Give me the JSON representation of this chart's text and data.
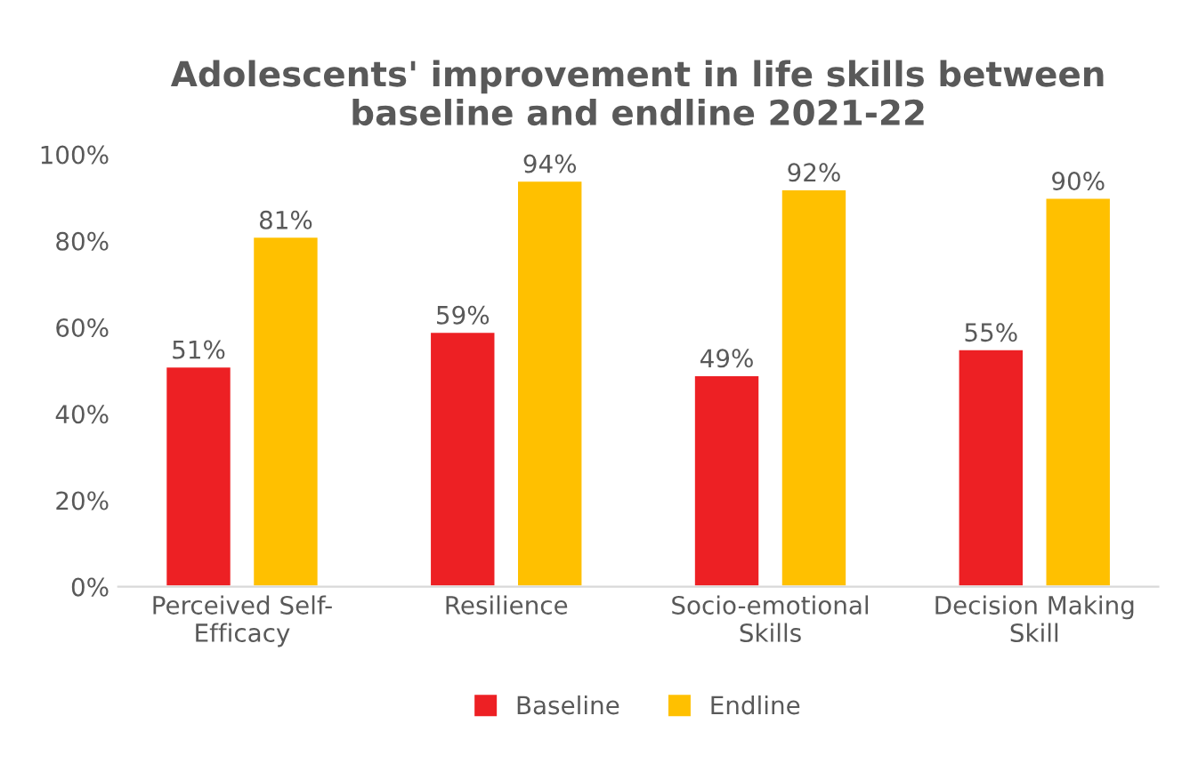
{
  "chart_data": {
    "type": "bar",
    "title": "Adolescents' improvement in life skills between baseline and endline 2021-22",
    "categories": [
      "Perceived Self-Efficacy",
      "Resilience",
      "Socio-emotional Skills",
      "Decision Making Skill"
    ],
    "series": [
      {
        "name": "Baseline",
        "color": "#ed2024",
        "values": [
          51,
          59,
          49,
          55
        ],
        "value_labels": [
          "51%",
          "59%",
          "49%",
          "55%"
        ]
      },
      {
        "name": "Endline",
        "color": "#ffc000",
        "values": [
          81,
          94,
          92,
          90
        ],
        "value_labels": [
          "81%",
          "94%",
          "92%",
          "90%"
        ]
      }
    ],
    "ylim": [
      0,
      100
    ],
    "yticks": [
      {
        "value": 0,
        "label": "0%"
      },
      {
        "value": 20,
        "label": "20%"
      },
      {
        "value": 40,
        "label": "40%"
      },
      {
        "value": 60,
        "label": "60%"
      },
      {
        "value": 80,
        "label": "80%"
      },
      {
        "value": 100,
        "label": "100%"
      }
    ],
    "grid": false,
    "legend": "bottom"
  }
}
